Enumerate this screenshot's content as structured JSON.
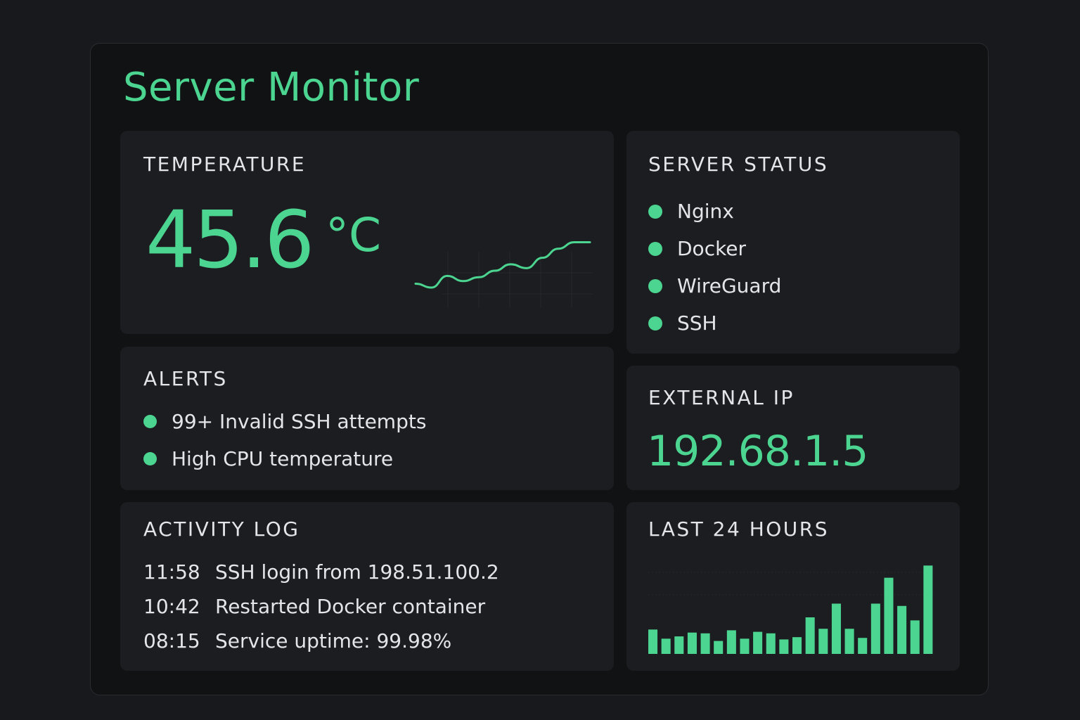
{
  "app": {
    "title": "Server Monitor",
    "accent_color": "#4bd590"
  },
  "temperature": {
    "heading": "TEMPERATURE",
    "value": "45.6",
    "unit": "°C",
    "trend": [
      18,
      12,
      30,
      22,
      28,
      38,
      48,
      42,
      58,
      72,
      82,
      82
    ]
  },
  "server_status": {
    "heading": "SERVER STATUS",
    "status_color": "#4bd590",
    "services": [
      {
        "name": "Nginx",
        "icon": "status-dot-icon"
      },
      {
        "name": "Docker",
        "icon": "status-dot-icon"
      },
      {
        "name": "WireGuard",
        "icon": "status-dot-icon"
      },
      {
        "name": "SSH",
        "icon": "status-dot-icon"
      }
    ]
  },
  "alerts": {
    "heading": "ALERTS",
    "items": [
      {
        "text": "99+ Invalid SSH attempts",
        "icon": "alert-dot-icon"
      },
      {
        "text": "High CPU temperature",
        "icon": "alert-dot-icon"
      }
    ]
  },
  "external_ip": {
    "heading": "EXTERNAL IP",
    "value": "192.68.1.5"
  },
  "activity_log": {
    "heading": "ACTIVITY LOG",
    "entries": [
      {
        "time": "11:58",
        "message": "SSH login from 198.51.100.2"
      },
      {
        "time": "10:42",
        "message": "Restarted Docker container"
      },
      {
        "time": "08:15",
        "message": "Service uptime: 99.98%"
      }
    ]
  },
  "last_24_hours": {
    "heading": "LAST 24 HOURS",
    "values": [
      32,
      20,
      23,
      28,
      27,
      17,
      31,
      20,
      29,
      27,
      19,
      22,
      48,
      33,
      66,
      33,
      21,
      66,
      100,
      63,
      44,
      116
    ]
  }
}
